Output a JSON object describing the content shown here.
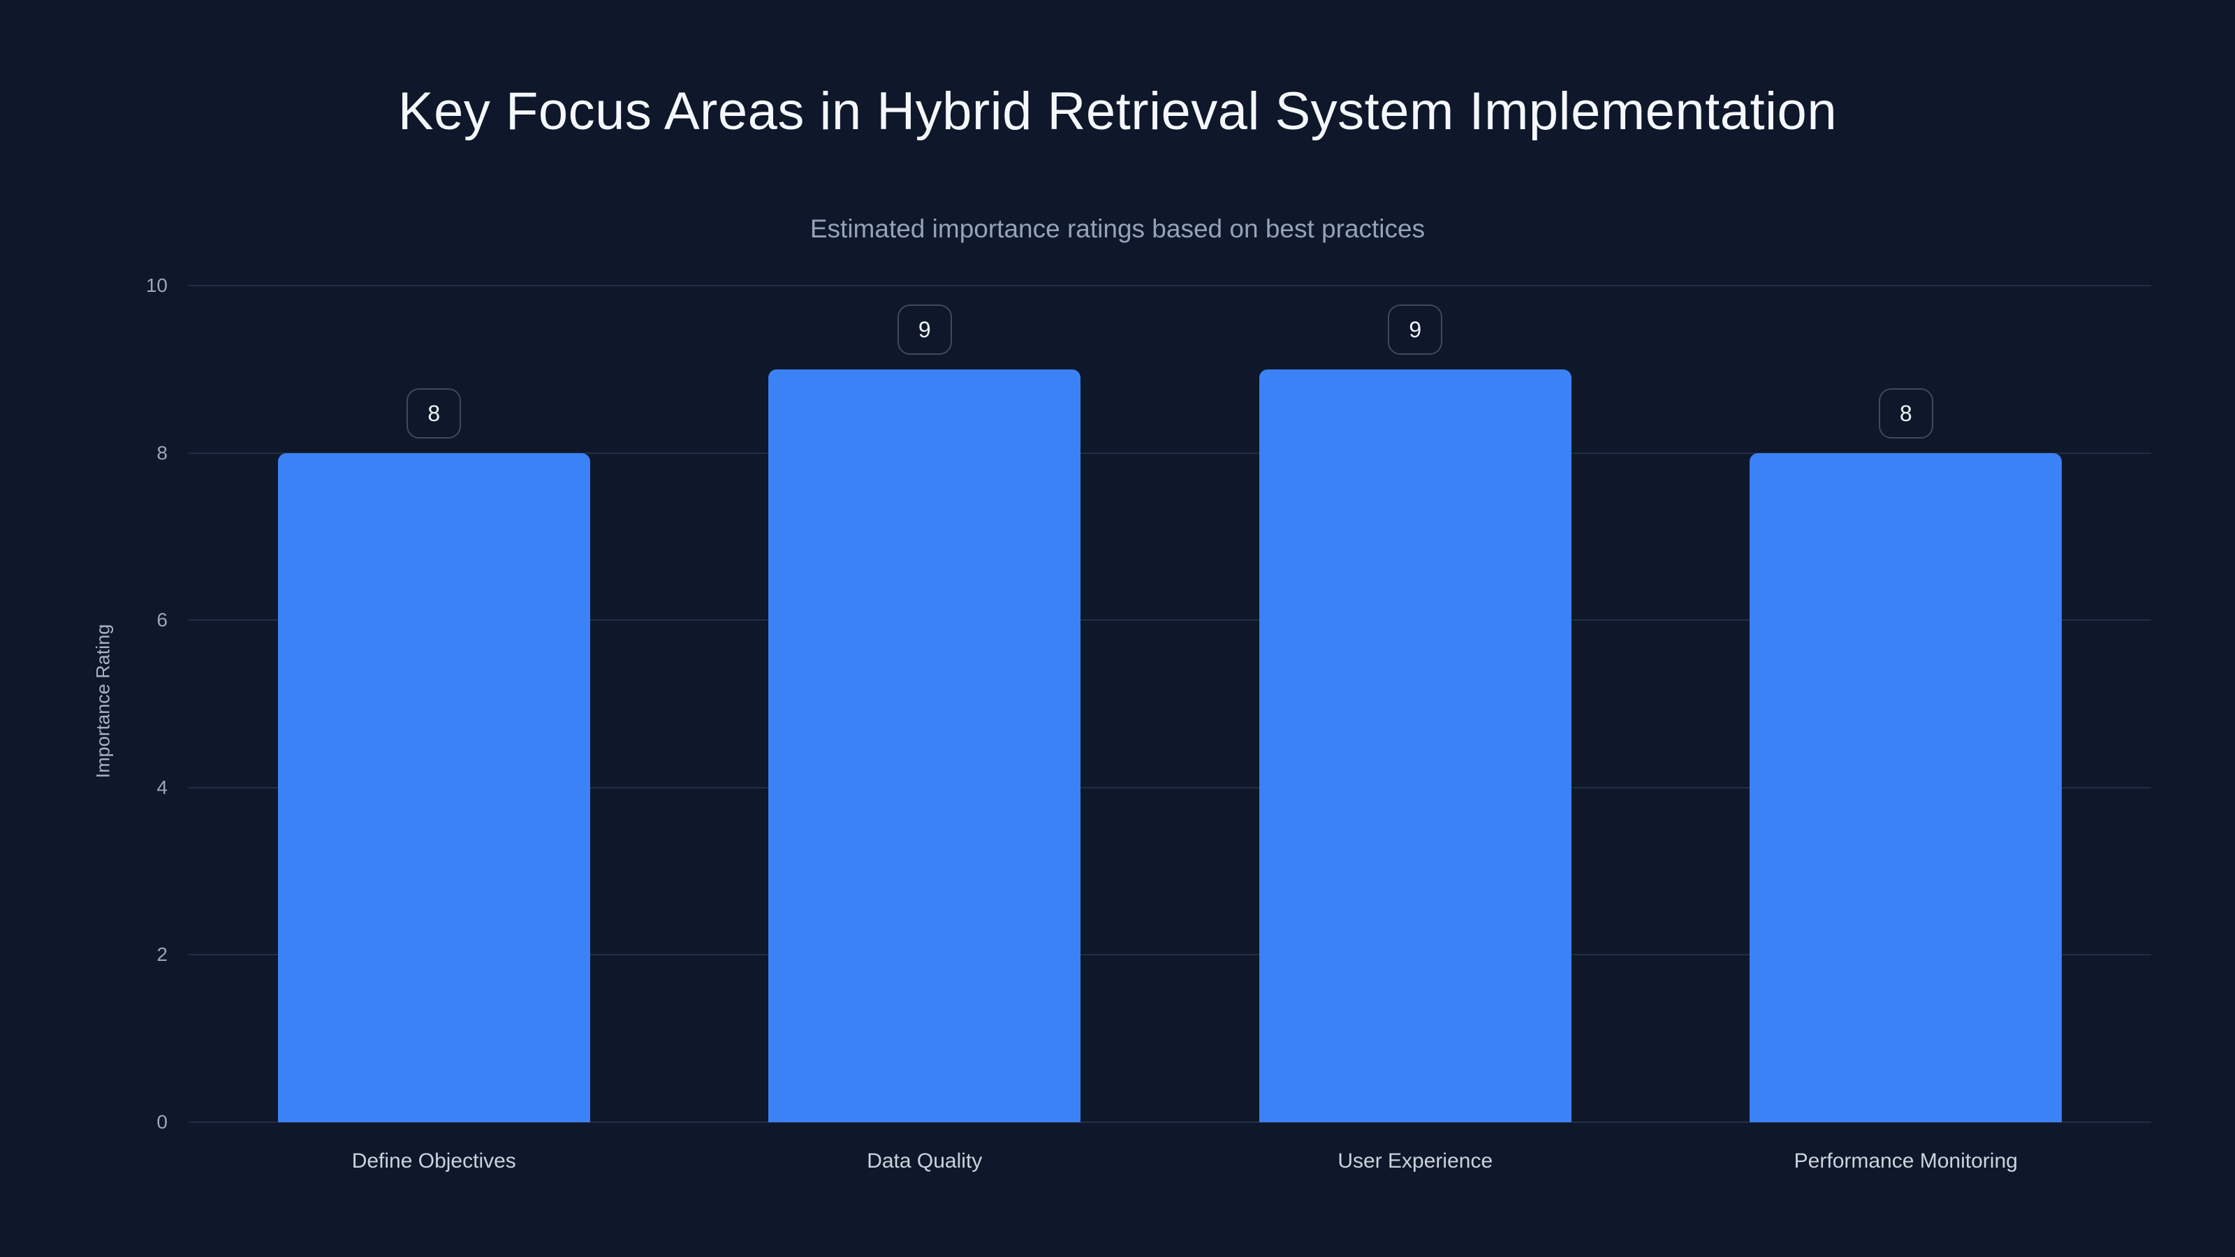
{
  "header": {
    "title": "Key Focus Areas in Hybrid Retrieval System Implementation",
    "subtitle": "Estimated importance ratings based on best practices"
  },
  "chart_data": {
    "type": "bar",
    "title": "Key Focus Areas in Hybrid Retrieval System Implementation",
    "subtitle": "Estimated importance ratings based on best practices",
    "categories": [
      "Define Objectives",
      "Data Quality",
      "User Experience",
      "Performance Monitoring"
    ],
    "values": [
      8,
      9,
      9,
      8
    ],
    "value_labels": [
      "8",
      "9",
      "9",
      "8"
    ],
    "xlabel": "",
    "ylabel": "Importance Rating",
    "ylim": [
      0,
      10
    ],
    "yticks": [
      0,
      2,
      4,
      6,
      8,
      10
    ],
    "grid": "horizontal-only",
    "legend": "none"
  },
  "colors": {
    "background": "#0f172a",
    "bar": "#3b82f6",
    "gridline": "#232e44",
    "title": "#f4f7fb",
    "subtitle": "#94a3b8",
    "tick_label": "#9aa7b8",
    "x_label": "#cbd3dd",
    "y_axis_title": "#a9b4c2",
    "badge_border": "#3f4a5c",
    "badge_text": "#eef2f7"
  }
}
